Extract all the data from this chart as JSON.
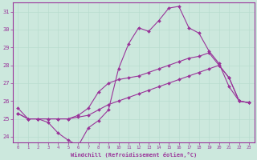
{
  "xlabel": "Windchill (Refroidissement éolien,°C)",
  "ylabel": "",
  "background_color": "#cce8dd",
  "plot_bg_color": "#cce8dd",
  "grid_color": "#aaddcc",
  "line_color": "#993399",
  "xlim": [
    -0.5,
    23.5
  ],
  "ylim": [
    23.7,
    31.5
  ],
  "xticks": [
    0,
    1,
    2,
    3,
    4,
    5,
    6,
    7,
    8,
    9,
    10,
    11,
    12,
    13,
    14,
    15,
    16,
    17,
    18,
    19,
    20,
    21,
    22,
    23
  ],
  "yticks": [
    24,
    25,
    26,
    27,
    28,
    29,
    30,
    31
  ],
  "line1_x": [
    0,
    1,
    2,
    3,
    4,
    5,
    6,
    7,
    8,
    9,
    10,
    11,
    12,
    13,
    14,
    15,
    16,
    17,
    18,
    19,
    20,
    21,
    22,
    23
  ],
  "line1_y": [
    25.6,
    25.0,
    25.0,
    24.8,
    24.2,
    23.8,
    23.5,
    24.5,
    24.9,
    25.5,
    27.8,
    29.2,
    30.1,
    29.9,
    30.5,
    31.2,
    31.3,
    30.1,
    29.8,
    28.8,
    28.1,
    26.8,
    26.0,
    25.9
  ],
  "line2_x": [
    0,
    1,
    2,
    3,
    4,
    5,
    6,
    7,
    8,
    9,
    10,
    11,
    12,
    13,
    14,
    15,
    16,
    17,
    18,
    19,
    20,
    21,
    22,
    23
  ],
  "line2_y": [
    25.3,
    25.0,
    25.0,
    25.0,
    25.0,
    25.0,
    25.2,
    25.6,
    26.5,
    27.0,
    27.2,
    27.3,
    27.4,
    27.6,
    27.8,
    28.0,
    28.2,
    28.4,
    28.5,
    28.7,
    28.0,
    27.3,
    26.0,
    25.9
  ],
  "line3_x": [
    0,
    1,
    2,
    3,
    4,
    5,
    6,
    7,
    8,
    9,
    10,
    11,
    12,
    13,
    14,
    15,
    16,
    17,
    18,
    19,
    20,
    21,
    22,
    23
  ],
  "line3_y": [
    25.3,
    25.0,
    25.0,
    25.0,
    25.0,
    25.0,
    25.1,
    25.2,
    25.5,
    25.8,
    26.0,
    26.2,
    26.4,
    26.6,
    26.8,
    27.0,
    27.2,
    27.4,
    27.6,
    27.8,
    28.0,
    27.3,
    26.0,
    25.9
  ]
}
